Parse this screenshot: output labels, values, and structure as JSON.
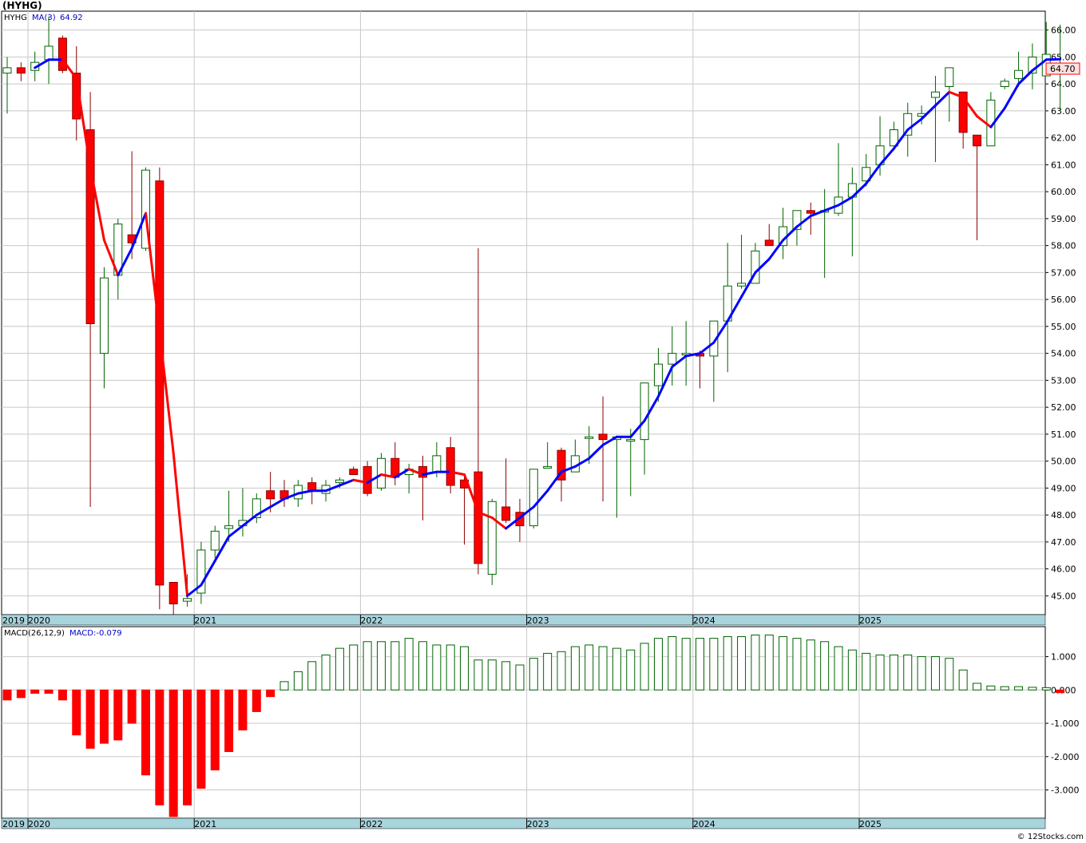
{
  "title": "(HYHG)",
  "watermark": "© 12Stocks.com",
  "price_panel": {
    "ticker_label": "HYHG",
    "ma_label": "MA(3)",
    "ma_value": "64.92",
    "last_price_label": "64.70",
    "colors": {
      "up": "#006400",
      "down": "#ff0000",
      "ma_up": "#0000ff",
      "ma_down": "#ff0000",
      "grid": "#c8c8c8",
      "axis_band": "#a8d4dc"
    }
  },
  "macd_panel": {
    "label": "MACD(26,12,9)",
    "value_label": "MACD:-0.079"
  },
  "x_axis_labels": [
    "2019",
    "2020",
    "2021",
    "2022",
    "2023",
    "2024",
    "2025"
  ],
  "chart_data": [
    {
      "type": "candlestick",
      "title": "(HYHG)",
      "ylim": [
        44.3,
        66.7
      ],
      "y_ticks": [
        45,
        46,
        47,
        48,
        49,
        50,
        51,
        52,
        53,
        54,
        55,
        56,
        57,
        58,
        59,
        60,
        61,
        62,
        63,
        64,
        65,
        66
      ],
      "y_tick_labels": [
        "45.00",
        "46.00",
        "47.00",
        "48.00",
        "49.00",
        "50.00",
        "51.00",
        "52.00",
        "53.00",
        "54.00",
        "55.00",
        "56.00",
        "57.00",
        "58.00",
        "59.00",
        "60.00",
        "61.00",
        "62.00",
        "63.00",
        "64.00",
        "65.00",
        "66.00"
      ],
      "interval": "monthly",
      "first_bar": "2019-11",
      "year_markers": [
        {
          "label": "2019",
          "bar": 0
        },
        {
          "label": "2020",
          "bar": 2
        },
        {
          "label": "2021",
          "bar": 14
        },
        {
          "label": "2022",
          "bar": 26
        },
        {
          "label": "2023",
          "bar": 38
        },
        {
          "label": "2024",
          "bar": 50
        },
        {
          "label": "2025",
          "bar": 62
        }
      ],
      "ohlc": [
        [
          64.4,
          65.0,
          62.9,
          64.6
        ],
        [
          64.6,
          64.8,
          64.1,
          64.4
        ],
        [
          64.5,
          65.2,
          64.1,
          64.8
        ],
        [
          64.9,
          66.5,
          64.0,
          65.4
        ],
        [
          65.7,
          65.8,
          64.4,
          64.5
        ],
        [
          64.4,
          65.4,
          61.9,
          62.7
        ],
        [
          62.3,
          63.7,
          48.3,
          55.1
        ],
        [
          54.0,
          57.2,
          52.7,
          56.8
        ],
        [
          56.9,
          59.0,
          56.0,
          58.8
        ],
        [
          58.4,
          61.5,
          57.5,
          58.1
        ],
        [
          57.9,
          60.9,
          57.8,
          60.8
        ],
        [
          60.4,
          60.9,
          44.5,
          45.4
        ],
        [
          45.5,
          45.5,
          44.3,
          44.7
        ],
        [
          44.8,
          45.8,
          44.6,
          44.9
        ],
        [
          45.1,
          47.0,
          44.7,
          46.7
        ],
        [
          46.7,
          47.6,
          46.4,
          47.4
        ],
        [
          47.5,
          48.9,
          47.0,
          47.6
        ],
        [
          47.6,
          49.0,
          47.2,
          47.8
        ],
        [
          47.9,
          48.8,
          47.7,
          48.6
        ],
        [
          48.9,
          49.6,
          48.1,
          48.6
        ],
        [
          48.9,
          49.3,
          48.3,
          48.6
        ],
        [
          48.6,
          49.3,
          48.3,
          49.1
        ],
        [
          49.2,
          49.4,
          48.4,
          48.9
        ],
        [
          48.8,
          49.3,
          48.5,
          49.1
        ],
        [
          49.2,
          49.4,
          49.0,
          49.3
        ],
        [
          49.7,
          49.8,
          49.5,
          49.5
        ],
        [
          49.8,
          50.0,
          48.7,
          48.8
        ],
        [
          49.0,
          50.3,
          48.9,
          50.1
        ],
        [
          50.1,
          50.7,
          49.1,
          49.4
        ],
        [
          49.5,
          49.9,
          48.8,
          49.7
        ],
        [
          49.8,
          50.2,
          47.8,
          49.4
        ],
        [
          49.6,
          50.7,
          49.4,
          50.2
        ],
        [
          50.5,
          50.9,
          48.8,
          49.1
        ],
        [
          49.3,
          49.5,
          46.9,
          49.0
        ],
        [
          49.6,
          57.9,
          45.8,
          46.2
        ],
        [
          45.8,
          48.6,
          45.4,
          48.5
        ],
        [
          48.3,
          50.1,
          47.7,
          47.8
        ],
        [
          48.1,
          48.6,
          47.0,
          47.6
        ],
        [
          47.6,
          49.7,
          47.5,
          49.7
        ],
        [
          49.8,
          50.7,
          49.8,
          49.8
        ],
        [
          50.4,
          50.5,
          48.5,
          49.3
        ],
        [
          49.6,
          50.8,
          49.6,
          50.2
        ],
        [
          50.9,
          51.3,
          49.9,
          50.9
        ],
        [
          51.0,
          52.4,
          48.5,
          50.8
        ],
        [
          50.8,
          50.9,
          47.9,
          50.9
        ],
        [
          50.8,
          51.2,
          48.7,
          50.8
        ],
        [
          50.8,
          52.9,
          49.5,
          52.9
        ],
        [
          52.8,
          54.2,
          52.2,
          53.6
        ],
        [
          53.6,
          55.0,
          52.8,
          54.0
        ],
        [
          54.0,
          55.2,
          52.8,
          54.0
        ],
        [
          54.0,
          54.1,
          52.7,
          53.9
        ],
        [
          53.9,
          55.2,
          52.2,
          55.2
        ],
        [
          55.2,
          58.1,
          53.3,
          56.5
        ],
        [
          56.5,
          58.4,
          56.4,
          56.6
        ],
        [
          56.6,
          58.1,
          56.6,
          57.8
        ],
        [
          58.2,
          58.8,
          58.0,
          58.0
        ],
        [
          58.0,
          59.4,
          57.5,
          58.7
        ],
        [
          58.6,
          59.3,
          58.0,
          59.3
        ],
        [
          59.3,
          59.6,
          58.4,
          59.2
        ],
        [
          59.3,
          60.1,
          56.8,
          59.3
        ],
        [
          59.2,
          61.8,
          59.1,
          59.8
        ],
        [
          59.8,
          60.9,
          57.6,
          60.3
        ],
        [
          60.4,
          61.4,
          60.2,
          60.9
        ],
        [
          61.0,
          62.8,
          60.6,
          61.7
        ],
        [
          61.7,
          62.6,
          61.6,
          62.3
        ],
        [
          62.1,
          63.3,
          61.3,
          62.9
        ],
        [
          62.8,
          63.2,
          62.5,
          62.9
        ],
        [
          63.5,
          64.3,
          61.1,
          63.7
        ],
        [
          63.9,
          64.6,
          62.6,
          64.6
        ],
        [
          63.7,
          63.7,
          61.6,
          62.2
        ],
        [
          62.1,
          62.0,
          58.2,
          61.7
        ],
        [
          61.7,
          63.7,
          61.7,
          63.4
        ],
        [
          63.9,
          64.2,
          63.8,
          64.1
        ],
        [
          64.2,
          65.2,
          63.9,
          64.5
        ],
        [
          64.4,
          65.5,
          63.8,
          65.0
        ],
        [
          64.3,
          66.3,
          64.3,
          65.1
        ],
        [
          64.7,
          66.2,
          63.0,
          64.7
        ]
      ],
      "series": [
        {
          "name": "MA(3)",
          "values": [
            null,
            null,
            64.6,
            64.9,
            64.9,
            64.2,
            60.9,
            58.2,
            56.9,
            57.9,
            59.2,
            54.8,
            50.3,
            45.0,
            45.4,
            46.3,
            47.2,
            47.6,
            48.0,
            48.3,
            48.6,
            48.8,
            48.9,
            48.9,
            49.1,
            49.3,
            49.2,
            49.5,
            49.4,
            49.7,
            49.5,
            49.6,
            49.6,
            49.5,
            48.1,
            47.9,
            47.5,
            47.9,
            48.3,
            48.9,
            49.6,
            49.8,
            50.1,
            50.6,
            50.9,
            50.9,
            51.5,
            52.4,
            53.5,
            53.9,
            54.0,
            54.4,
            55.2,
            56.1,
            57.0,
            57.5,
            58.2,
            58.7,
            59.1,
            59.3,
            59.5,
            59.8,
            60.3,
            61.0,
            61.6,
            62.3,
            62.7,
            63.2,
            63.7,
            63.5,
            62.8,
            62.4,
            63.1,
            64.0,
            64.5,
            64.9,
            64.92
          ]
        }
      ]
    },
    {
      "type": "bar",
      "title": "MACD(26,12,9)",
      "ylim": [
        -3.85,
        1.9
      ],
      "y_ticks": [
        -3,
        -2,
        -1,
        0,
        1
      ],
      "y_tick_labels": [
        "-3.000",
        "-2.000",
        "-1.000",
        "0.000",
        "1.000"
      ],
      "values": [
        -0.3,
        -0.23,
        -0.1,
        -0.1,
        -0.3,
        -1.35,
        -1.75,
        -1.6,
        -1.5,
        -1.0,
        -2.55,
        -3.45,
        -3.8,
        -3.45,
        -2.95,
        -2.4,
        -1.85,
        -1.2,
        -0.65,
        -0.2,
        0.25,
        0.55,
        0.85,
        1.05,
        1.25,
        1.35,
        1.45,
        1.45,
        1.45,
        1.55,
        1.45,
        1.35,
        1.35,
        1.3,
        0.9,
        0.9,
        0.85,
        0.75,
        0.95,
        1.1,
        1.15,
        1.3,
        1.35,
        1.3,
        1.25,
        1.2,
        1.4,
        1.55,
        1.6,
        1.55,
        1.55,
        1.55,
        1.6,
        1.6,
        1.65,
        1.65,
        1.6,
        1.55,
        1.5,
        1.45,
        1.3,
        1.2,
        1.1,
        1.05,
        1.05,
        1.05,
        1.0,
        1.0,
        0.95,
        0.6,
        0.2,
        0.12,
        0.1,
        0.1,
        0.08,
        0.07,
        -0.079
      ]
    }
  ]
}
